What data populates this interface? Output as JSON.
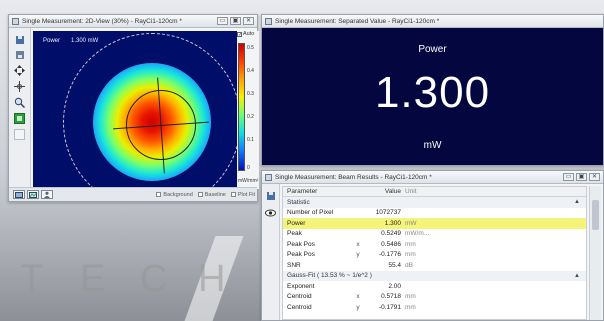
{
  "background": {
    "watermark_letters": [
      "T",
      "E",
      "C",
      "H"
    ]
  },
  "window_2d": {
    "title": "Single Measurement: 2D-View (30%) - RayCi1-120cm *",
    "plot_label": "Power",
    "plot_value": "1.300 mW",
    "auto_label": "Auto",
    "auto_checked": "✓",
    "colorbar_ticks": [
      "0.5",
      "0.4",
      "0.3",
      "0.2",
      "0.1",
      "0"
    ],
    "colorbar_unit": "mW/mm²",
    "checks": [
      "Background",
      "Baseline",
      "Plot Fit"
    ],
    "toolbar_icons": [
      "save-icon",
      "save-as-icon",
      "move-icon",
      "crosshair-icon",
      "zoom-icon",
      "fit-icon"
    ]
  },
  "window_sep": {
    "title": "Single Measurement: Separated Value - RayCi1-120cm *",
    "label": "Power",
    "value": "1.300",
    "unit": "mW"
  },
  "window_results": {
    "title": "Single Measurement: Beam Results - RayCi1-120cm *",
    "headers": {
      "param": "Parameter",
      "value": "Value",
      "unit": "Unit"
    },
    "rows": [
      {
        "type": "section",
        "param": "Statistic",
        "arrow": "▲"
      },
      {
        "param": "Number of Pixel",
        "sub": "",
        "value": "1072737",
        "unit": ""
      },
      {
        "param": "Power",
        "sub": "",
        "value": "1.300",
        "unit": "mW",
        "highlight": true
      },
      {
        "param": "Peak",
        "sub": "",
        "value": "0.5249",
        "unit": "mW/m..."
      },
      {
        "param": "Peak Pos",
        "sub": "x",
        "value": "0.5486",
        "unit": "mm"
      },
      {
        "param": "Peak Pos",
        "sub": "y",
        "value": "-0.1776",
        "unit": "mm"
      },
      {
        "param": "SNR",
        "sub": "",
        "value": "55.4",
        "unit": "dB"
      },
      {
        "type": "section",
        "param": "Gauss-Fit ( 13.53 % ~ 1/e^2 )",
        "arrow": "▲"
      },
      {
        "param": "Exponent",
        "sub": "",
        "value": "2.00",
        "unit": ""
      },
      {
        "param": "Centroid",
        "sub": "x",
        "value": "0.5718",
        "unit": "mm"
      },
      {
        "param": "Centroid",
        "sub": "y",
        "value": "-0.1791",
        "unit": "mm"
      }
    ]
  },
  "window_buttons": {
    "minimize": "▭",
    "restore": "▣",
    "close": "✕"
  }
}
